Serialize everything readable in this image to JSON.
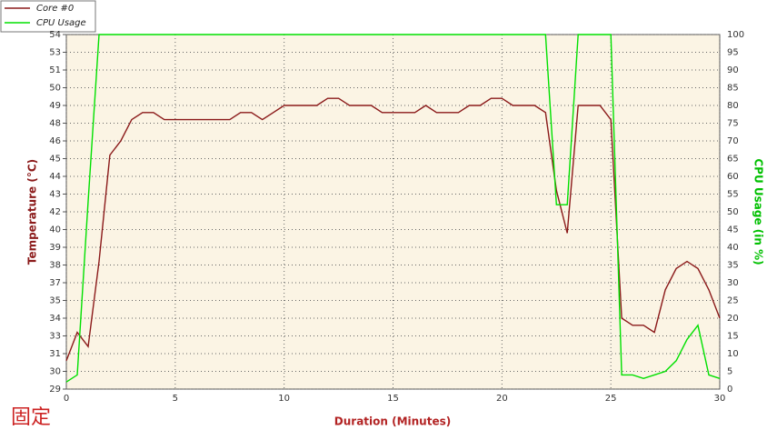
{
  "chart_data": {
    "type": "line",
    "corner_text": "固定",
    "xlabel": "Duration (Minutes)",
    "ylabel": "Temperature (°C)",
    "y2label": "CPU Usage (in %)",
    "x": [
      0,
      0.5,
      1,
      1.5,
      2,
      2.5,
      3,
      3.5,
      4,
      4.5,
      5,
      5.5,
      6,
      6.5,
      7,
      7.5,
      8,
      8.5,
      9,
      9.5,
      10,
      10.5,
      11,
      11.5,
      12,
      12.5,
      13,
      13.5,
      14,
      14.5,
      15,
      15.5,
      16,
      16.5,
      17,
      17.5,
      18,
      18.5,
      19,
      19.5,
      20,
      20.5,
      21,
      21.5,
      22,
      22.5,
      23,
      23.5,
      24,
      24.5,
      25,
      25.5,
      26,
      26.5,
      27,
      27.5,
      28,
      28.5,
      29,
      29.5,
      30
    ],
    "series": [
      {
        "name": "Core #0",
        "color": "#8b1a1a",
        "axis": "y",
        "values": [
          31,
          33,
          32,
          38,
          45.5,
          46.5,
          48,
          48.5,
          48.5,
          48,
          48,
          48,
          48,
          48,
          48,
          48,
          48.5,
          48.5,
          48,
          48.5,
          49,
          49,
          49,
          49,
          49.5,
          49.5,
          49,
          49,
          49,
          48.5,
          48.5,
          48.5,
          48.5,
          49,
          48.5,
          48.5,
          48.5,
          49,
          49,
          49.5,
          49.5,
          49,
          49,
          49,
          48.5,
          43,
          40,
          49,
          49,
          49,
          48,
          34,
          33.5,
          33.5,
          33,
          36,
          37.5,
          38,
          37.5,
          36,
          34
        ]
      },
      {
        "name": "CPU Usage",
        "color": "#00e000",
        "axis": "y2",
        "values": [
          2,
          4,
          53,
          100,
          100,
          100,
          100,
          100,
          100,
          100,
          100,
          100,
          100,
          100,
          100,
          100,
          100,
          100,
          100,
          100,
          100,
          100,
          100,
          100,
          100,
          100,
          100,
          100,
          100,
          100,
          100,
          100,
          100,
          100,
          100,
          100,
          100,
          100,
          100,
          100,
          100,
          100,
          100,
          100,
          100,
          52,
          52,
          100,
          100,
          100,
          100,
          4,
          4,
          3,
          4,
          5,
          8,
          14,
          18,
          4,
          3
        ]
      }
    ],
    "xlim": [
      0,
      30
    ],
    "xticks": [
      0,
      5,
      10,
      15,
      20,
      25,
      30
    ],
    "ylim": [
      29,
      54
    ],
    "yticks": [
      {
        "value": 29,
        "label": "29"
      },
      {
        "value": 30.25,
        "label": "30"
      },
      {
        "value": 31.5,
        "label": "31"
      },
      {
        "value": 32.75,
        "label": "33"
      },
      {
        "value": 34,
        "label": "34"
      },
      {
        "value": 35.25,
        "label": "35"
      },
      {
        "value": 36.5,
        "label": "37"
      },
      {
        "value": 37.75,
        "label": "38"
      },
      {
        "value": 39,
        "label": "39"
      },
      {
        "value": 40.25,
        "label": "40"
      },
      {
        "value": 41.5,
        "label": "42"
      },
      {
        "value": 42.75,
        "label": "43"
      },
      {
        "value": 44,
        "label": "44"
      },
      {
        "value": 45.25,
        "label": "45"
      },
      {
        "value": 46.5,
        "label": "46"
      },
      {
        "value": 47.75,
        "label": "48"
      },
      {
        "value": 49,
        "label": "49"
      },
      {
        "value": 50.25,
        "label": "50"
      },
      {
        "value": 51.5,
        "label": "51"
      },
      {
        "value": 52.75,
        "label": "53"
      },
      {
        "value": 54,
        "label": "54"
      }
    ],
    "y2lim": [
      0,
      100
    ],
    "y2ticks": [
      0,
      5,
      10,
      15,
      20,
      25,
      30,
      35,
      40,
      45,
      50,
      55,
      60,
      65,
      70,
      75,
      80,
      85,
      90,
      95,
      100
    ],
    "grid": true,
    "legend": "top-left"
  }
}
